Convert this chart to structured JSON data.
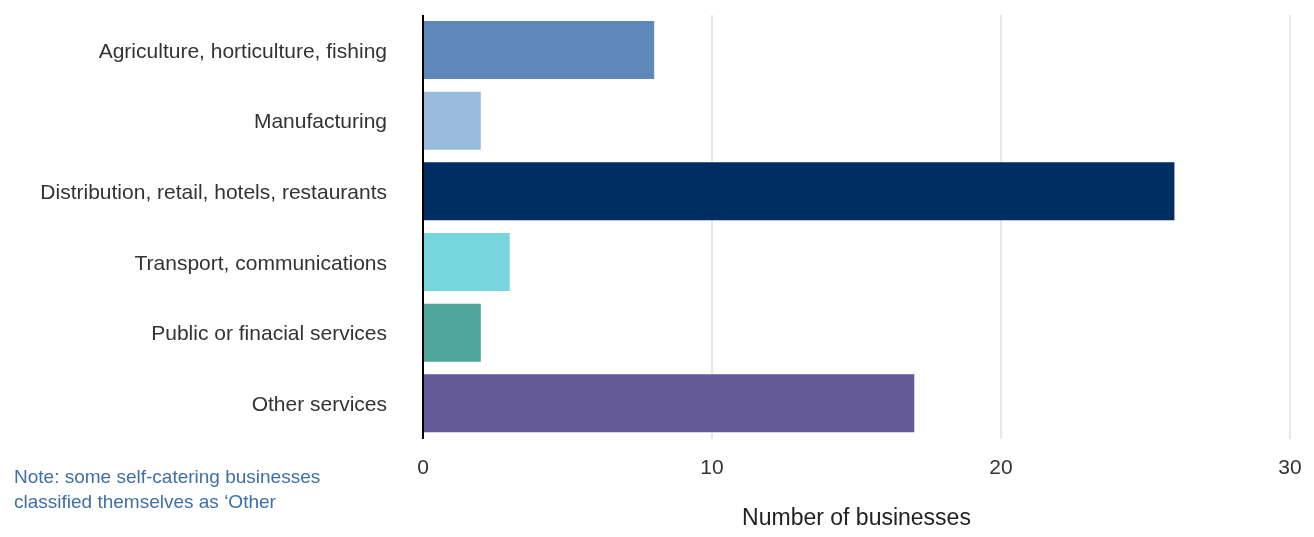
{
  "chart_data": {
    "type": "bar",
    "orientation": "horizontal",
    "categories": [
      "Agriculture, horticulture, fishing",
      "Manufacturing",
      "Distribution, retail, hotels, restaurants",
      "Transport, communications",
      "Public or finacial services",
      "Other services"
    ],
    "values": [
      8,
      2,
      26,
      3,
      2,
      17
    ],
    "colors": [
      "#5f88ba",
      "#99bbdd",
      "#002d62",
      "#77d5de",
      "#4fa59a",
      "#655a98"
    ],
    "xlim": [
      0,
      30
    ],
    "xticks": [
      0,
      10,
      20,
      30
    ],
    "grid": "x",
    "xlabel": "Number of businesses",
    "annotations": [
      "Note: some self-catering businesses classified themselves as ‘Other"
    ]
  }
}
